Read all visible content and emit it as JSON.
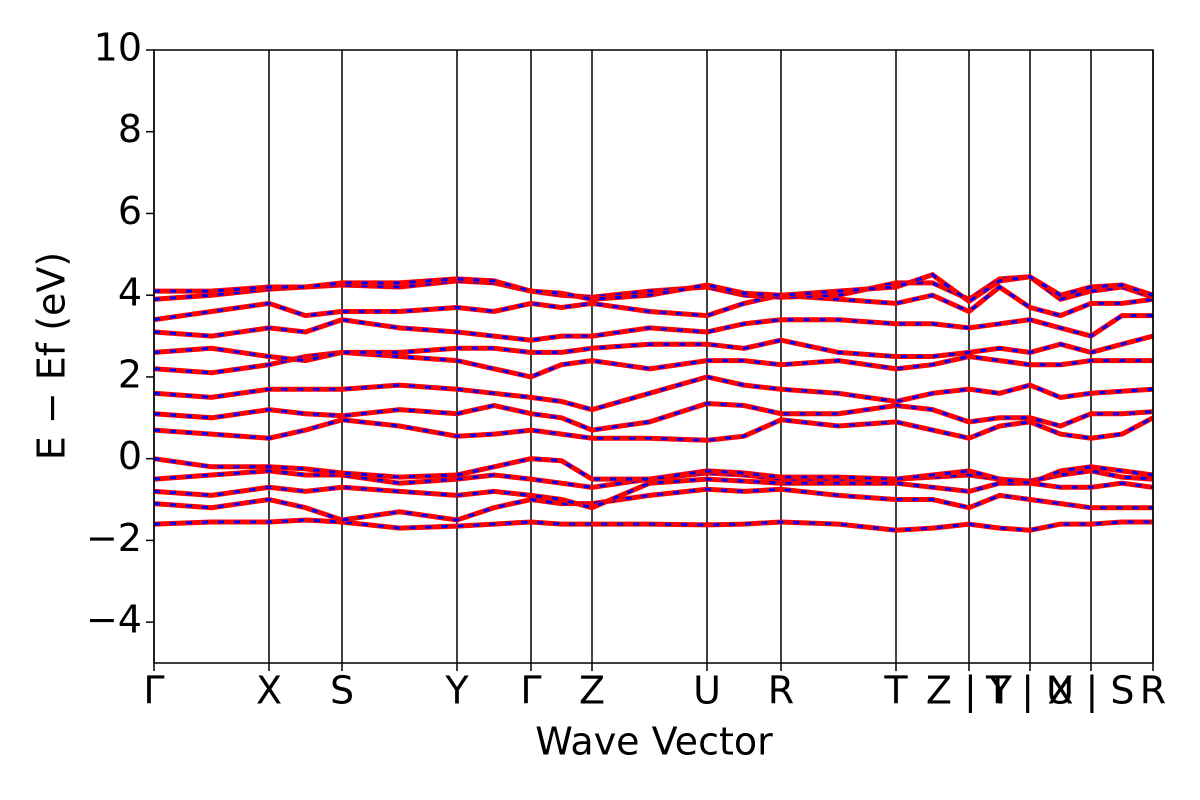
{
  "chart_data": {
    "type": "band-structure",
    "xlabel": "Wave Vector",
    "ylabel": "E − Ef (eV)",
    "xlim": [
      0,
      9.99
    ],
    "ylim": [
      -5,
      10
    ],
    "xticks": [
      {
        "value": 0,
        "label": "Γ"
      },
      {
        "value": 1.15,
        "label": "X"
      },
      {
        "value": 1.88,
        "label": "S"
      },
      {
        "value": 3.03,
        "label": "Y"
      },
      {
        "value": 3.77,
        "label": "Γ"
      },
      {
        "value": 4.38,
        "label": "Z"
      },
      {
        "value": 5.53,
        "label": "U"
      },
      {
        "value": 6.27,
        "label": "R"
      },
      {
        "value": 7.42,
        "label": "T"
      },
      {
        "value": 8.15,
        "label": "Z | Y"
      },
      {
        "value": 8.76,
        "label": "T | U"
      },
      {
        "value": 9.37,
        "label": "X | S"
      },
      {
        "value": 9.99,
        "label": "R"
      }
    ],
    "yticks": [
      {
        "value": -4,
        "label": "−4"
      },
      {
        "value": -2,
        "label": "−2"
      },
      0,
      2,
      4,
      6,
      8,
      10
    ],
    "spin_colors": [
      "#ff0000",
      "#0000ff"
    ],
    "x": [
      0,
      0.575,
      1.15,
      1.515,
      1.88,
      2.455,
      3.03,
      3.4,
      3.77,
      4.075,
      4.38,
      4.955,
      5.53,
      5.9,
      6.27,
      6.845,
      7.42,
      7.785,
      8.15,
      8.455,
      8.76,
      9.065,
      9.37,
      9.68,
      9.99
    ],
    "bands": [
      [
        -1.6,
        -1.55,
        -1.55,
        -1.5,
        -1.55,
        -1.7,
        -1.65,
        -1.6,
        -1.55,
        -1.6,
        -1.6,
        -1.6,
        -1.62,
        -1.6,
        -1.55,
        -1.6,
        -1.75,
        -1.7,
        -1.6,
        -1.7,
        -1.75,
        -1.6,
        -1.6,
        -1.55,
        -1.55
      ],
      [
        -1.1,
        -1.2,
        -1.0,
        -1.2,
        -1.5,
        -1.3,
        -1.5,
        -1.2,
        -1.0,
        -1.1,
        -1.1,
        -0.9,
        -0.75,
        -0.8,
        -0.75,
        -0.9,
        -1.0,
        -1.0,
        -1.2,
        -0.9,
        -1.0,
        -1.1,
        -1.2,
        -1.2,
        -1.2
      ],
      [
        -0.8,
        -0.9,
        -0.7,
        -0.8,
        -0.7,
        -0.8,
        -0.9,
        -0.8,
        -0.9,
        -1.0,
        -1.2,
        -0.6,
        -0.5,
        -0.55,
        -0.6,
        -0.6,
        -0.6,
        -0.7,
        -0.8,
        -0.6,
        -0.6,
        -0.7,
        -0.7,
        -0.6,
        -0.7
      ],
      [
        -0.5,
        -0.4,
        -0.3,
        -0.4,
        -0.4,
        -0.6,
        -0.5,
        -0.4,
        -0.5,
        -0.6,
        -0.7,
        -0.5,
        -0.35,
        -0.4,
        -0.5,
        -0.5,
        -0.5,
        -0.45,
        -0.4,
        -0.5,
        -0.55,
        -0.4,
        -0.3,
        -0.45,
        -0.5
      ],
      [
        0,
        -0.2,
        -0.2,
        -0.25,
        -0.35,
        -0.45,
        -0.4,
        -0.2,
        0,
        -0.05,
        -0.5,
        -0.5,
        -0.3,
        -0.35,
        -0.45,
        -0.45,
        -0.5,
        -0.4,
        -0.3,
        -0.5,
        -0.6,
        -0.3,
        -0.2,
        -0.3,
        -0.4
      ],
      [
        0.7,
        0.6,
        0.5,
        0.7,
        0.95,
        0.8,
        0.55,
        0.6,
        0.7,
        0.6,
        0.5,
        0.5,
        0.45,
        0.55,
        0.95,
        0.8,
        0.9,
        0.7,
        0.5,
        0.8,
        0.9,
        0.6,
        0.5,
        0.6,
        1.0
      ],
      [
        1.1,
        1.0,
        1.2,
        1.1,
        1.05,
        1.2,
        1.1,
        1.3,
        1.1,
        1.0,
        0.7,
        0.9,
        1.35,
        1.3,
        1.1,
        1.1,
        1.3,
        1.2,
        0.9,
        1.0,
        1.0,
        0.8,
        1.1,
        1.1,
        1.15
      ],
      [
        1.6,
        1.5,
        1.7,
        1.7,
        1.7,
        1.8,
        1.7,
        1.6,
        1.5,
        1.4,
        1.2,
        1.6,
        2.0,
        1.8,
        1.7,
        1.6,
        1.4,
        1.6,
        1.7,
        1.6,
        1.8,
        1.5,
        1.6,
        1.65,
        1.7
      ],
      [
        2.2,
        2.1,
        2.3,
        2.5,
        2.6,
        2.5,
        2.4,
        2.2,
        2.0,
        2.3,
        2.4,
        2.2,
        2.4,
        2.4,
        2.3,
        2.4,
        2.2,
        2.3,
        2.5,
        2.4,
        2.3,
        2.3,
        2.4,
        2.4,
        2.4
      ],
      [
        2.6,
        2.7,
        2.5,
        2.4,
        2.6,
        2.6,
        2.7,
        2.7,
        2.6,
        2.6,
        2.7,
        2.8,
        2.8,
        2.7,
        2.9,
        2.6,
        2.5,
        2.5,
        2.6,
        2.7,
        2.6,
        2.8,
        2.6,
        2.8,
        3.0
      ],
      [
        3.1,
        3.0,
        3.2,
        3.1,
        3.4,
        3.2,
        3.1,
        3.0,
        2.9,
        3.0,
        3.0,
        3.2,
        3.1,
        3.3,
        3.4,
        3.4,
        3.3,
        3.3,
        3.2,
        3.3,
        3.4,
        3.2,
        3.0,
        3.5,
        3.5
      ],
      [
        3.4,
        3.6,
        3.8,
        3.5,
        3.6,
        3.6,
        3.7,
        3.6,
        3.8,
        3.7,
        3.8,
        3.6,
        3.5,
        3.8,
        4.0,
        3.9,
        3.8,
        4.0,
        3.6,
        4.2,
        3.7,
        3.5,
        3.8,
        3.8,
        3.9
      ],
      [
        3.9,
        4.0,
        4.15,
        4.2,
        4.25,
        4.2,
        4.35,
        4.3,
        4.1,
        4.0,
        3.95,
        4.1,
        4.2,
        4.0,
        3.95,
        4.0,
        4.3,
        4.3,
        3.9,
        4.4,
        4.45,
        3.9,
        4.1,
        4.2,
        3.95
      ],
      [
        4.1,
        4.1,
        4.2,
        4.2,
        4.3,
        4.3,
        4.4,
        4.35,
        4.1,
        4.05,
        3.9,
        4.0,
        4.25,
        4.05,
        4.0,
        4.1,
        4.2,
        4.5,
        3.85,
        4.35,
        4.45,
        4.0,
        4.2,
        4.25,
        4.0
      ]
    ]
  }
}
